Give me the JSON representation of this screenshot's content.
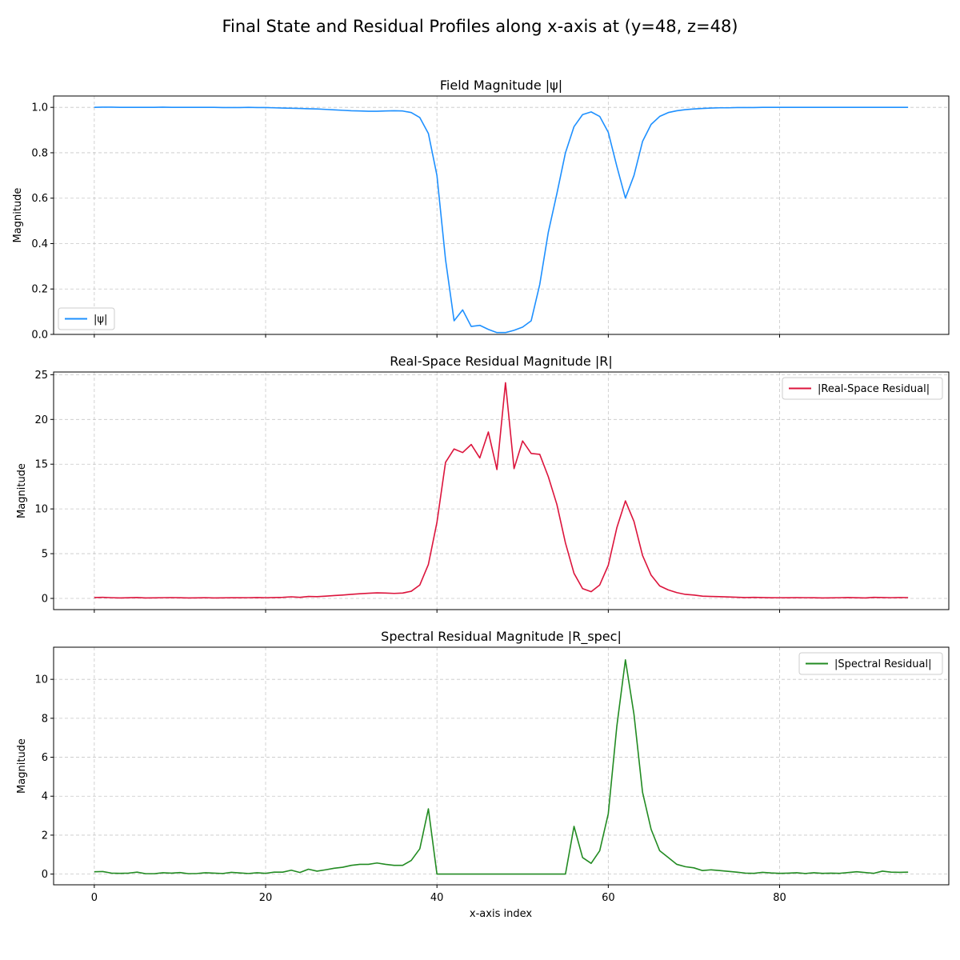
{
  "figure": {
    "title": "Final State and Residual Profiles along x-axis at (y=48, z=48)",
    "xlabel": "x-axis index"
  },
  "chart_data": [
    {
      "type": "line",
      "title": "Field Magnitude |ψ|",
      "ylabel": "Magnitude",
      "xlim": [
        -4.75,
        99.75
      ],
      "ylim": [
        0.0,
        1.05
      ],
      "xticks": [
        0,
        20,
        40,
        60,
        80
      ],
      "yticks": [
        0.0,
        0.2,
        0.4,
        0.6,
        0.8,
        1.0
      ],
      "ytick_labels": [
        "0.0",
        "0.2",
        "0.4",
        "0.6",
        "0.8",
        "1.0"
      ],
      "grid": true,
      "legend": "lower-left",
      "series": [
        {
          "name": "|ψ|",
          "color": "#1e90ff",
          "values": [
            1.0,
            1.001,
            1.001,
            1.0,
            1.0,
            1.0,
            1.0,
            1.0,
            1.001,
            1.0,
            1.0,
            1.0,
            1.0,
            1.0,
            1.0,
            0.999,
            0.999,
            0.999,
            1.0,
            0.999,
            0.999,
            0.998,
            0.997,
            0.996,
            0.995,
            0.994,
            0.993,
            0.991,
            0.989,
            0.987,
            0.985,
            0.984,
            0.983,
            0.983,
            0.984,
            0.985,
            0.984,
            0.977,
            0.955,
            0.885,
            0.7,
            0.33,
            0.06,
            0.108,
            0.035,
            0.04,
            0.022,
            0.008,
            0.008,
            0.018,
            0.032,
            0.06,
            0.22,
            0.45,
            0.62,
            0.8,
            0.915,
            0.968,
            0.98,
            0.96,
            0.89,
            0.74,
            0.6,
            0.7,
            0.85,
            0.925,
            0.96,
            0.977,
            0.985,
            0.99,
            0.993,
            0.995,
            0.997,
            0.998,
            0.998,
            0.999,
            0.999,
            0.999,
            1.0,
            1.0,
            1.0,
            1.0,
            1.0,
            1.0,
            1.0,
            1.0,
            1.0,
            1.0,
            1.0,
            1.0,
            1.0,
            1.0,
            1.0,
            1.0,
            1.0,
            1.0
          ]
        }
      ]
    },
    {
      "type": "line",
      "title": "Real-Space Residual Magnitude |R|",
      "ylabel": "Magnitude",
      "xlim": [
        -4.75,
        99.75
      ],
      "ylim": [
        -1.25,
        25.3
      ],
      "xticks": [
        0,
        20,
        40,
        60,
        80
      ],
      "yticks": [
        0,
        5,
        10,
        15,
        20,
        25
      ],
      "ytick_labels": [
        "0",
        "5",
        "10",
        "15",
        "20",
        "25"
      ],
      "grid": true,
      "legend": "upper-right",
      "series": [
        {
          "name": "|Real-Space Residual|",
          "color": "#dc143c",
          "values": [
            0.1,
            0.12,
            0.08,
            0.05,
            0.07,
            0.1,
            0.05,
            0.06,
            0.08,
            0.09,
            0.07,
            0.05,
            0.06,
            0.08,
            0.05,
            0.06,
            0.08,
            0.07,
            0.08,
            0.1,
            0.08,
            0.1,
            0.12,
            0.18,
            0.12,
            0.22,
            0.2,
            0.25,
            0.32,
            0.38,
            0.45,
            0.52,
            0.58,
            0.62,
            0.6,
            0.56,
            0.6,
            0.8,
            1.5,
            3.8,
            8.5,
            15.2,
            16.7,
            16.3,
            17.2,
            15.7,
            18.6,
            14.4,
            24.1,
            14.5,
            17.6,
            16.2,
            16.1,
            13.6,
            10.5,
            6.2,
            2.8,
            1.1,
            0.75,
            1.5,
            3.7,
            7.9,
            10.9,
            8.6,
            4.8,
            2.6,
            1.4,
            0.95,
            0.65,
            0.45,
            0.38,
            0.25,
            0.22,
            0.2,
            0.16,
            0.13,
            0.1,
            0.12,
            0.1,
            0.07,
            0.08,
            0.07,
            0.09,
            0.08,
            0.07,
            0.05,
            0.06,
            0.08,
            0.1,
            0.07,
            0.05,
            0.12,
            0.1,
            0.08,
            0.1,
            0.09
          ]
        }
      ]
    },
    {
      "type": "line",
      "title": "Spectral Residual Magnitude |R_spec|",
      "ylabel": "Magnitude",
      "xlim": [
        -4.75,
        99.75
      ],
      "ylim": [
        -0.55,
        11.65
      ],
      "xticks": [
        0,
        20,
        40,
        60,
        80
      ],
      "yticks": [
        0,
        2,
        4,
        6,
        8,
        10
      ],
      "ytick_labels": [
        "0",
        "2",
        "4",
        "6",
        "8",
        "10"
      ],
      "grid": true,
      "legend": "upper-right",
      "series": [
        {
          "name": "|Spectral Residual|",
          "color": "#228b22",
          "values": [
            0.12,
            0.13,
            0.05,
            0.04,
            0.05,
            0.1,
            0.02,
            0.02,
            0.07,
            0.05,
            0.08,
            0.02,
            0.03,
            0.07,
            0.05,
            0.03,
            0.09,
            0.06,
            0.03,
            0.07,
            0.04,
            0.1,
            0.1,
            0.2,
            0.08,
            0.25,
            0.15,
            0.22,
            0.3,
            0.35,
            0.45,
            0.5,
            0.5,
            0.57,
            0.5,
            0.45,
            0.45,
            0.7,
            1.3,
            3.35,
            0.0,
            0.0,
            0.0,
            0.0,
            0.0,
            0.0,
            0.0,
            0.0,
            0.0,
            0.0,
            0.0,
            0.0,
            0.0,
            0.0,
            0.0,
            0.0,
            2.45,
            0.85,
            0.55,
            1.2,
            3.1,
            7.6,
            11.0,
            8.2,
            4.2,
            2.3,
            1.2,
            0.85,
            0.5,
            0.38,
            0.32,
            0.18,
            0.22,
            0.18,
            0.14,
            0.1,
            0.05,
            0.04,
            0.09,
            0.06,
            0.04,
            0.05,
            0.07,
            0.03,
            0.07,
            0.04,
            0.05,
            0.04,
            0.08,
            0.12,
            0.08,
            0.04,
            0.15,
            0.1,
            0.09,
            0.1
          ]
        }
      ]
    }
  ]
}
